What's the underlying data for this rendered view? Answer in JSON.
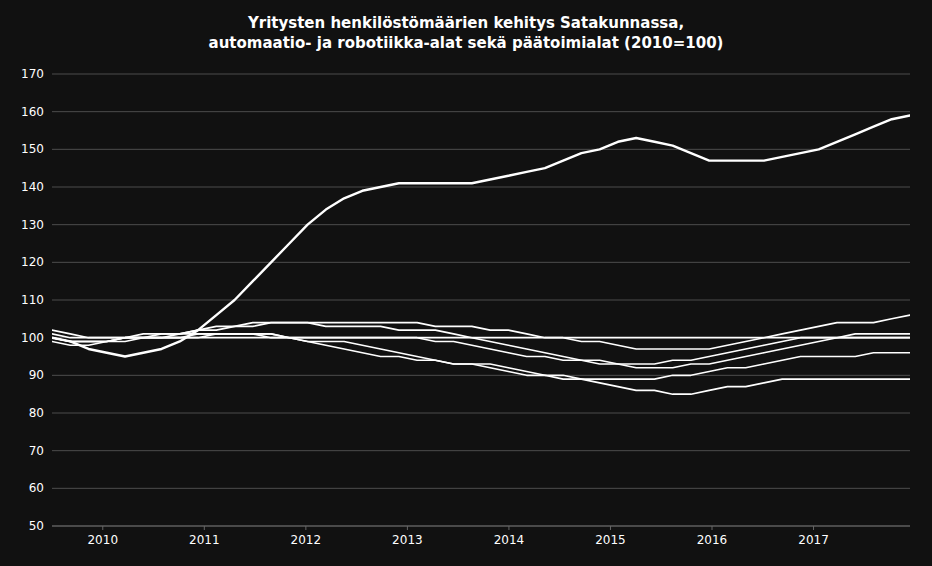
{
  "chart_data": {
    "type": "line",
    "title": "Yritysten henkilöstömäärien kehitys Satakunnassa,\nautomaatio- ja robotiikka-alat sekä päätoimialat (2010=100)",
    "x": [
      2009.5,
      2009.6798,
      2009.8596,
      2010.0394,
      2010.2191,
      2010.3989,
      2010.5787,
      2010.7585,
      2010.9383,
      2011.1181,
      2011.2979,
      2011.4777,
      2011.6574,
      2011.8372,
      2012.017,
      2012.1968,
      2012.3766,
      2012.5564,
      2012.7362,
      2012.916,
      2013.0957,
      2013.2755,
      2013.4553,
      2013.6351,
      2013.8149,
      2013.9947,
      2014.1745,
      2014.3543,
      2014.534,
      2014.7138,
      2014.8936,
      2015.0734,
      2015.2532,
      2015.433,
      2015.6128,
      2015.7926,
      2015.9723,
      2016.1521,
      2016.3319,
      2016.5117,
      2016.6915,
      2016.8713,
      2017.0511,
      2017.2309,
      2017.4106,
      2017.5904,
      2017.7702,
      2017.95
    ],
    "series": [
      {
        "color": "#ffffff",
        "values": [
          101,
          100,
          100,
          100,
          100,
          101,
          101,
          101,
          102,
          103,
          103,
          104,
          104,
          104,
          104,
          104,
          104,
          104,
          104,
          104,
          104,
          103,
          103,
          103,
          102,
          102,
          101,
          100,
          100,
          99,
          99,
          98,
          97,
          97,
          97,
          97,
          97,
          98,
          99,
          100,
          101,
          102,
          103,
          104,
          104,
          104,
          105,
          106
        ]
      },
      {
        "color": "#ffffff",
        "values": [
          100,
          99,
          99,
          99,
          100,
          100,
          101,
          101,
          102,
          102,
          103,
          103,
          104,
          104,
          104,
          103,
          103,
          103,
          103,
          102,
          102,
          102,
          101,
          100,
          99,
          98,
          97,
          96,
          95,
          94,
          93,
          93,
          92,
          92,
          92,
          93,
          93,
          94,
          95,
          96,
          97,
          98,
          99,
          100,
          101,
          101,
          101,
          101
        ]
      },
      {
        "color": "#ffffff",
        "values": [
          100,
          99,
          99,
          99,
          100,
          100,
          100,
          100,
          100,
          101,
          101,
          101,
          100,
          100,
          99,
          99,
          99,
          98,
          97,
          96,
          95,
          94,
          93,
          93,
          93,
          92,
          91,
          90,
          90,
          89,
          89,
          89,
          89,
          89,
          90,
          90,
          91,
          92,
          92,
          93,
          94,
          95,
          95,
          95,
          95,
          96,
          96,
          96
        ]
      },
      {
        "color": "#ffffff",
        "values": [
          100,
          99,
          99,
          99,
          100,
          100,
          100,
          101,
          101,
          101,
          101,
          101,
          101,
          100,
          99,
          98,
          97,
          96,
          95,
          95,
          94,
          94,
          93,
          93,
          92,
          91,
          90,
          90,
          89,
          89,
          88,
          87,
          86,
          86,
          85,
          85,
          86,
          87,
          87,
          88,
          89,
          89,
          89,
          89,
          89,
          89,
          89,
          89
        ]
      },
      {
        "color": "#ffffff",
        "values": [
          102,
          101,
          100,
          100,
          100,
          100,
          100,
          100,
          100,
          100,
          100,
          100,
          100,
          100,
          100,
          100,
          100,
          100,
          100,
          100,
          100,
          100,
          100,
          100,
          100,
          100,
          100,
          100,
          100,
          100,
          100,
          100,
          100,
          100,
          100,
          100,
          100,
          100,
          100,
          100,
          100,
          100,
          100,
          100,
          100,
          100,
          100,
          100
        ]
      },
      {
        "color": "#ffffff",
        "values": [
          99,
          98,
          98,
          99,
          99,
          100,
          100,
          100,
          101,
          101,
          101,
          101,
          101,
          100,
          100,
          100,
          100,
          100,
          100,
          100,
          100,
          99,
          99,
          98,
          97,
          96,
          95,
          95,
          94,
          94,
          94,
          93,
          93,
          93,
          94,
          94,
          95,
          96,
          97,
          98,
          99,
          100,
          100,
          100,
          100,
          100,
          100,
          100
        ]
      },
      {
        "color": "#ffffff",
        "values": [
          100,
          99,
          97,
          96,
          95,
          96,
          97,
          99,
          102,
          106,
          110,
          115,
          120,
          125,
          130,
          134,
          137,
          139,
          140,
          141,
          141,
          141,
          141,
          141,
          142,
          143,
          144,
          145,
          147,
          149,
          150,
          152,
          153,
          152,
          151,
          149,
          147,
          147,
          147,
          147,
          148,
          149,
          150,
          152,
          154,
          156,
          158,
          159
        ]
      }
    ],
    "xlim": [
      2009.5,
      2017.95
    ],
    "xticks": [
      2010,
      2011,
      2012,
      2013,
      2014,
      2015,
      2016,
      2017
    ],
    "ylim": [
      50,
      170
    ],
    "yticks": [
      50,
      60,
      70,
      80,
      90,
      100,
      110,
      120,
      130,
      140,
      150,
      160,
      170
    ],
    "grid": true
  }
}
